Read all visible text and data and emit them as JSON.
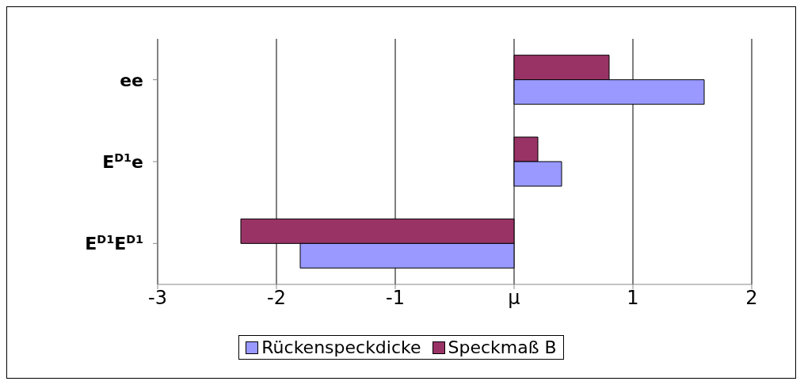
{
  "chart_data": {
    "type": "bar",
    "orientation": "horizontal",
    "categories": [
      "ee",
      "E$^{D1}$e",
      "E$^{D1}$E$^{D1}$"
    ],
    "series": [
      {
        "name": "Rückenspeckdicke",
        "color": "#9999ff",
        "values": [
          1.6,
          0.4,
          -1.8
        ]
      },
      {
        "name": "Speckmaß B",
        "color": "#993366",
        "values": [
          0.8,
          0.2,
          -2.3
        ]
      }
    ],
    "xlim": [
      -3,
      2
    ],
    "xticks": [
      -3,
      -2,
      -1,
      {
        "value": 0,
        "label": "μ"
      },
      1,
      2
    ],
    "grid": "x",
    "legend": "bottom"
  }
}
